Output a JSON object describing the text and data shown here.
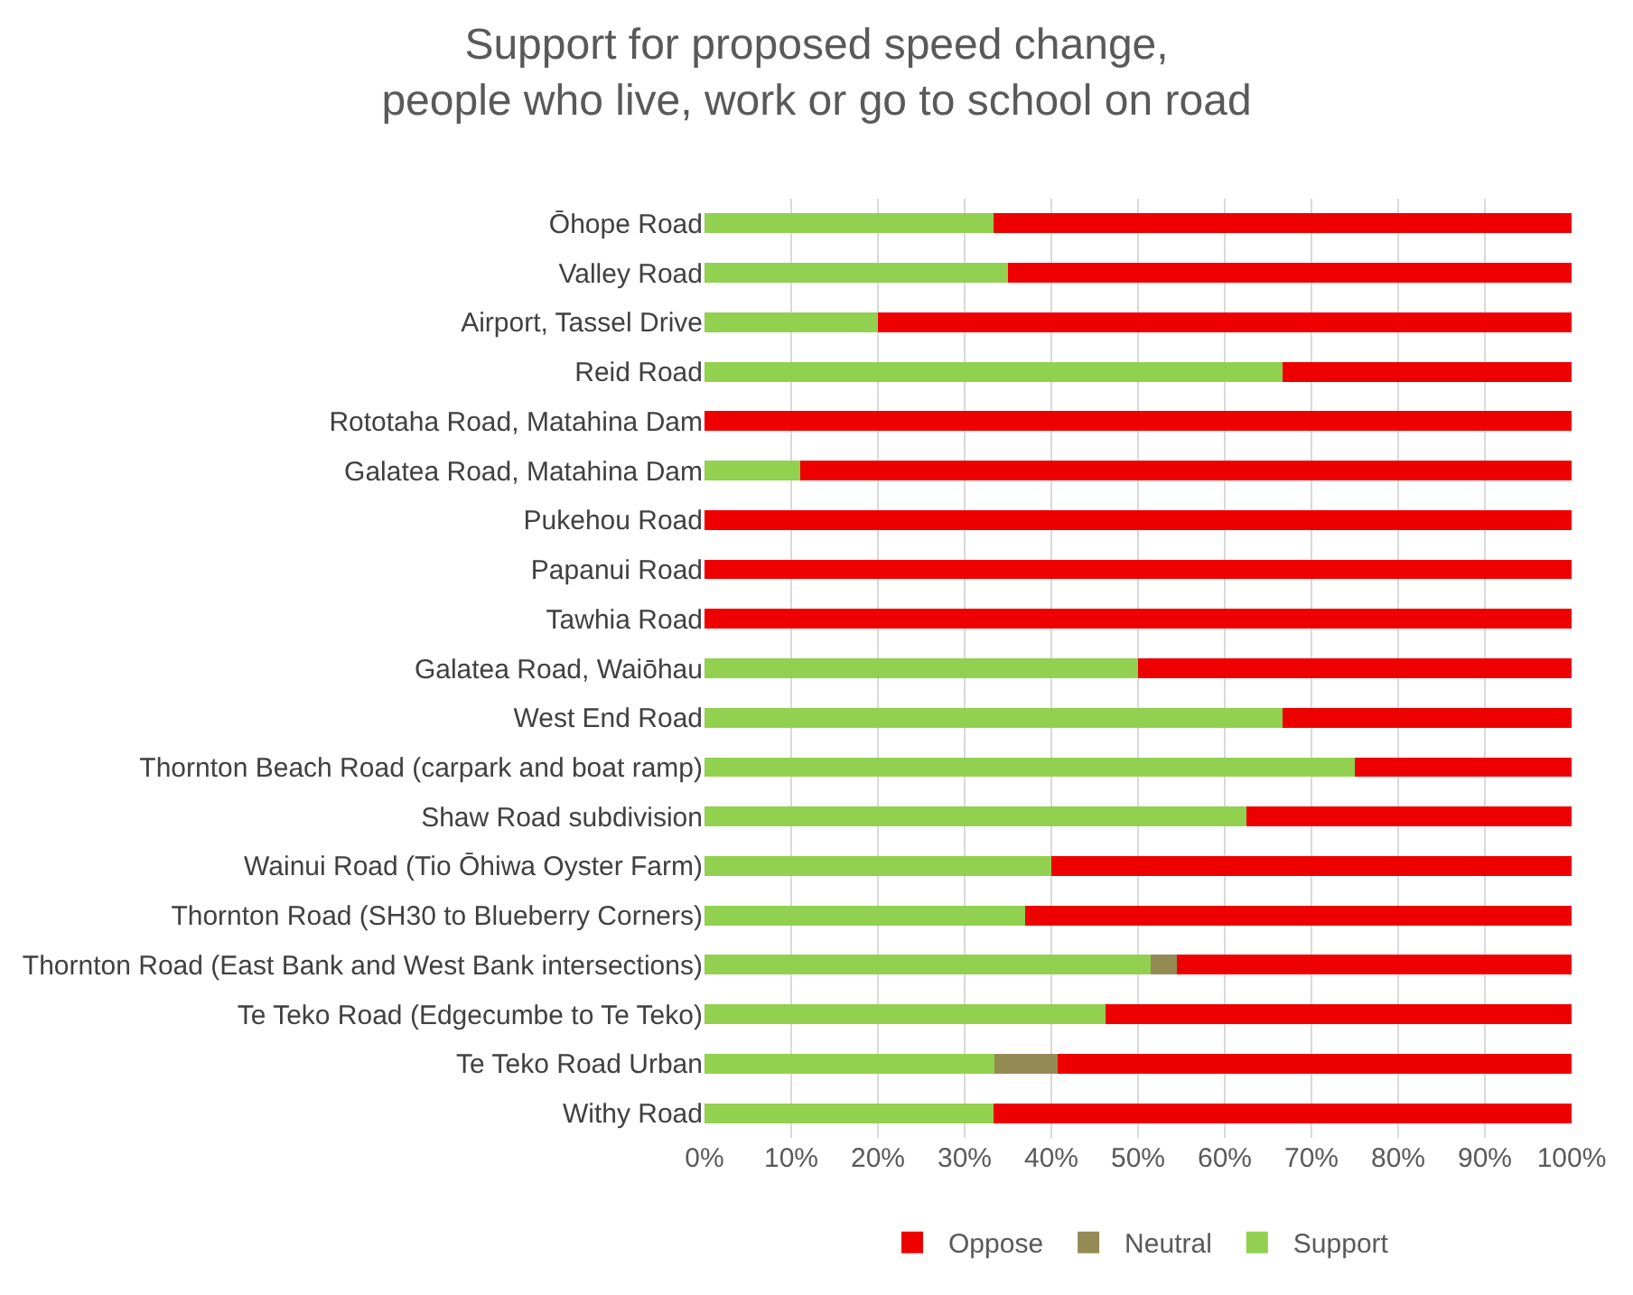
{
  "chart_data": {
    "type": "bar",
    "orientation": "horizontal",
    "stacked": true,
    "title": "Support for proposed speed change,\npeople who live, work or go to school on road",
    "categories": [
      "Ōhope Road",
      "Valley Road",
      "Airport, Tassel Drive",
      "Reid Road",
      "Rototaha Road, Matahina Dam",
      "Galatea Road, Matahina Dam",
      "Pukehou Road",
      "Papanui Road",
      "Tawhia Road",
      "Galatea Road, Waiōhau",
      "West End Road",
      "Thornton Beach Road (carpark and boat ramp)",
      "Shaw Road subdivision",
      "Wainui Road (Tio Ōhiwa Oyster Farm)",
      "Thornton Road (SH30 to Blueberry Corners)",
      "Thornton Road (East Bank and West Bank intersections)",
      "Te Teko Road (Edgecumbe to Te Teko)",
      "Te Teko Road Urban",
      "Withy Road"
    ],
    "series": [
      {
        "name": "Support",
        "color": "#92d050",
        "values": [
          33.3,
          35,
          20,
          66.7,
          0,
          11,
          0,
          0,
          0,
          50,
          66.7,
          75,
          62.5,
          40,
          37,
          51.5,
          46.2,
          33.4,
          33.3
        ]
      },
      {
        "name": "Neutral",
        "color": "#948a54",
        "values": [
          0,
          0,
          0,
          0,
          0,
          0,
          0,
          0,
          0,
          0,
          0,
          0,
          0,
          0,
          0,
          3,
          0,
          7.3,
          0
        ]
      },
      {
        "name": "Oppose",
        "color": "#ee0000",
        "values": [
          66.7,
          65,
          80,
          33.3,
          100,
          89,
          100,
          100,
          100,
          50,
          33.3,
          25,
          37.5,
          60,
          63,
          45.5,
          53.8,
          59.3,
          66.7
        ]
      }
    ],
    "xlim": [
      0,
      100
    ],
    "xticks": [
      {
        "value": 0,
        "label": "0%"
      },
      {
        "value": 10,
        "label": "10%"
      },
      {
        "value": 20,
        "label": "20%"
      },
      {
        "value": 30,
        "label": "30%"
      },
      {
        "value": 40,
        "label": "40%"
      },
      {
        "value": 50,
        "label": "50%"
      },
      {
        "value": 60,
        "label": "60%"
      },
      {
        "value": 70,
        "label": "70%"
      },
      {
        "value": 80,
        "label": "80%"
      },
      {
        "value": 90,
        "label": "90%"
      },
      {
        "value": 100,
        "label": "100%"
      }
    ],
    "grid": "x",
    "legend": "bottom"
  }
}
